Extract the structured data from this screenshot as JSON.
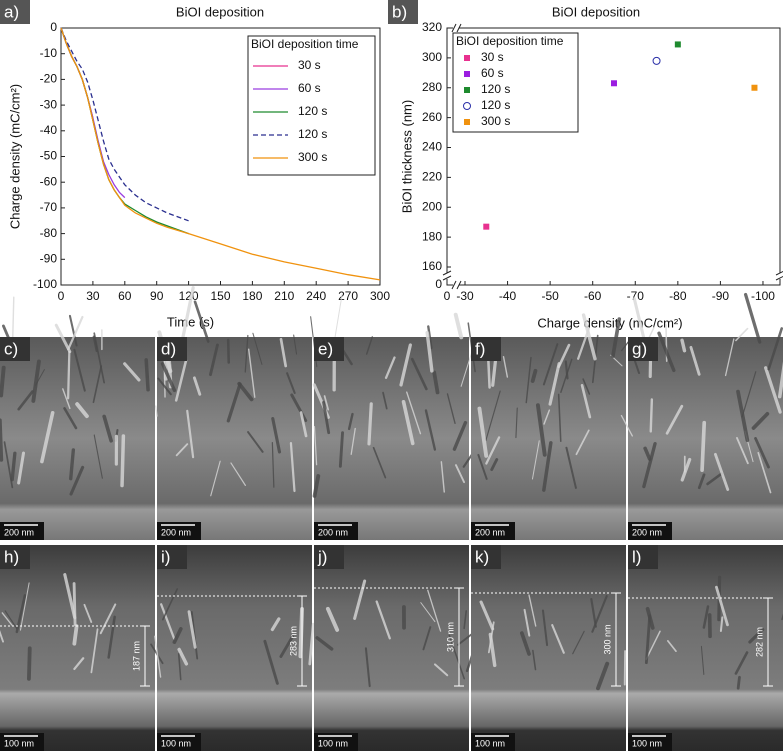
{
  "chart_data": [
    {
      "type": "line",
      "panel": "a)",
      "title": "BiOI deposition",
      "x_label": "Time (s)",
      "y_label": "Charge density (mC/cm²)",
      "legend_title": "BiOI deposition time",
      "xlim": [
        0,
        300
      ],
      "xticks": [
        0,
        30,
        60,
        90,
        120,
        150,
        180,
        210,
        240,
        270,
        300
      ],
      "ylim": [
        -100,
        0
      ],
      "yticks": [
        0,
        -10,
        -20,
        -30,
        -40,
        -50,
        -60,
        -70,
        -80,
        -90,
        -100
      ],
      "series": [
        {
          "name": "30 s",
          "color": "#e8318f",
          "dash": false,
          "x": [
            0,
            5,
            10,
            15,
            20,
            25,
            30
          ],
          "values": [
            0,
            -6,
            -11,
            -15,
            -20,
            -27,
            -35
          ]
        },
        {
          "name": "60 s",
          "color": "#9b3de0",
          "dash": false,
          "x": [
            0,
            5,
            10,
            15,
            20,
            25,
            30,
            35,
            40,
            45,
            50,
            55,
            60
          ],
          "values": [
            0,
            -6,
            -11,
            -15,
            -20,
            -27,
            -35,
            -44,
            -52,
            -57,
            -61,
            -64,
            -66
          ]
        },
        {
          "name": "120 s",
          "color": "#1e8a2e",
          "dash": false,
          "x": [
            0,
            5,
            10,
            15,
            20,
            25,
            30,
            35,
            40,
            45,
            50,
            55,
            60,
            70,
            80,
            90,
            100,
            120
          ],
          "values": [
            0,
            -6,
            -11,
            -15,
            -20,
            -27,
            -36,
            -45,
            -53,
            -59,
            -63,
            -66,
            -68.5,
            -71,
            -73.5,
            -75.5,
            -77,
            -80
          ]
        },
        {
          "name": "120 s",
          "color": "#2a2f8f",
          "dash": true,
          "x": [
            0,
            5,
            10,
            15,
            20,
            25,
            30,
            35,
            40,
            45,
            50,
            55,
            60,
            70,
            80,
            90,
            100,
            120
          ],
          "values": [
            0,
            -5,
            -9,
            -13,
            -16,
            -21,
            -28,
            -36,
            -44,
            -51,
            -55,
            -58,
            -61,
            -65,
            -68,
            -70,
            -72,
            -75
          ]
        },
        {
          "name": "300 s",
          "color": "#f0920e",
          "dash": false,
          "x": [
            0,
            5,
            10,
            15,
            20,
            25,
            30,
            35,
            40,
            45,
            50,
            55,
            60,
            70,
            80,
            90,
            100,
            120,
            150,
            180,
            210,
            240,
            270,
            300
          ],
          "values": [
            0,
            -6,
            -11,
            -15,
            -20,
            -27,
            -36,
            -45,
            -53,
            -59,
            -63,
            -66,
            -69,
            -72,
            -74,
            -76,
            -77.5,
            -80,
            -84,
            -88,
            -91,
            -93.5,
            -96,
            -98
          ]
        }
      ]
    },
    {
      "type": "scatter",
      "panel": "b)",
      "title": "BiOI deposition",
      "x_label": "Charge density (mC/cm²)",
      "y_label": "BiOI thickness (nm)",
      "legend_title": "BiOI deposition time",
      "xlim": [
        0,
        -104
      ],
      "xbreak": [
        0,
        -30
      ],
      "xticks": [
        0,
        -30,
        -40,
        -50,
        -60,
        -70,
        -80,
        -90,
        -100
      ],
      "ylim": [
        0,
        320
      ],
      "ybreak": [
        0,
        160
      ],
      "yticks": [
        0,
        160,
        180,
        200,
        220,
        240,
        260,
        280,
        300,
        320
      ],
      "series": [
        {
          "name": "30 s",
          "color": "#e8318f",
          "marker": "square",
          "x": [
            -35
          ],
          "values": [
            187
          ]
        },
        {
          "name": "60 s",
          "color": "#9b1de0",
          "marker": "square",
          "x": [
            -65
          ],
          "values": [
            283
          ]
        },
        {
          "name": "120 s",
          "color": "#1e8a2e",
          "marker": "square",
          "x": [
            -80
          ],
          "values": [
            309
          ]
        },
        {
          "name": "120 s",
          "color": "#2a2fa8",
          "marker": "open-circle",
          "x": [
            -75
          ],
          "values": [
            298
          ]
        },
        {
          "name": "300 s",
          "color": "#f0920e",
          "marker": "square",
          "x": [
            -98
          ],
          "values": [
            280
          ]
        }
      ]
    }
  ],
  "panels": [
    {
      "label": "c)",
      "scale": "200 nm"
    },
    {
      "label": "d)",
      "scale": "200 nm"
    },
    {
      "label": "e)",
      "scale": "200 nm"
    },
    {
      "label": "f)",
      "scale": "200 nm"
    },
    {
      "label": "g)",
      "scale": "200 nm"
    },
    {
      "label": "h)",
      "scale": "100 nm",
      "thickness": "187 nm"
    },
    {
      "label": "i)",
      "scale": "100 nm",
      "thickness": "283 nm"
    },
    {
      "label": "j)",
      "scale": "100 nm",
      "thickness": "310 nm"
    },
    {
      "label": "k)",
      "scale": "100 nm",
      "thickness": "300 nm"
    },
    {
      "label": "l)",
      "scale": "100 nm",
      "thickness": "282 nm"
    }
  ]
}
